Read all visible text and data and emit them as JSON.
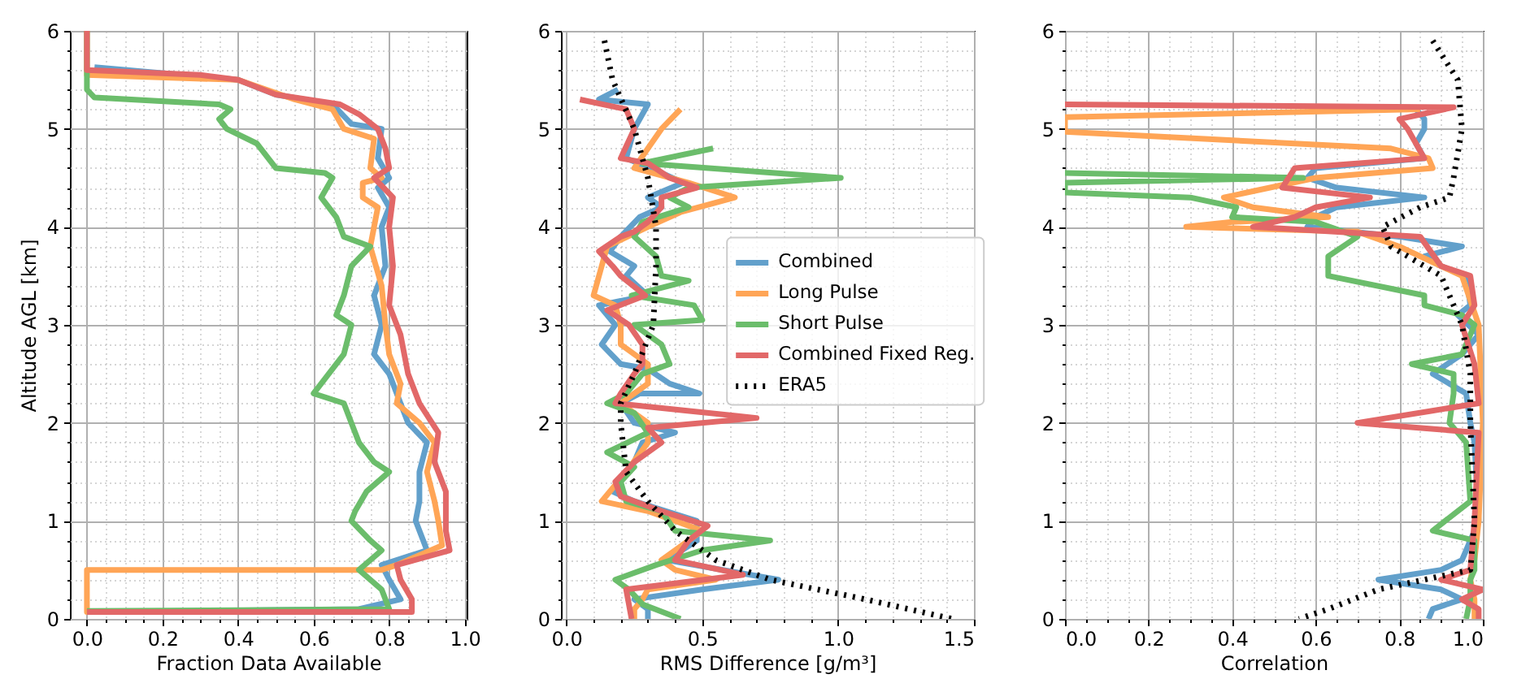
{
  "chart_data": [
    {
      "type": "line",
      "xlabel": "Fraction Data Available",
      "ylabel": "Altitude AGL [km]",
      "xlim": [
        -0.045,
        1.005
      ],
      "ylim": [
        0,
        6
      ],
      "xticks": [
        {
          "value": 0,
          "label": "0.0"
        },
        {
          "value": 0.05,
          "label": null
        },
        {
          "value": 0.1,
          "label": null
        },
        {
          "value": 0.15,
          "label": null
        },
        0.2,
        {
          "value": 0.25,
          "label": null
        },
        {
          "value": 0.3,
          "label": null
        },
        {
          "value": 0.35,
          "label": null
        },
        0.4,
        {
          "value": 0.45,
          "label": null
        },
        {
          "value": 0.5,
          "label": null
        },
        {
          "value": 0.55,
          "label": null
        },
        0.6,
        {
          "value": 0.65,
          "label": null
        },
        {
          "value": 0.7,
          "label": null
        },
        {
          "value": 0.75,
          "label": null
        },
        0.8,
        {
          "value": 0.85,
          "label": null
        },
        {
          "value": 0.9,
          "label": null
        },
        {
          "value": 0.95,
          "label": null
        },
        {
          "value": 1,
          "label": "1.0"
        }
      ],
      "yticks": [
        0,
        {
          "value": 0.2,
          "label": null
        },
        {
          "value": 0.4,
          "label": null
        },
        {
          "value": 0.6,
          "label": null
        },
        {
          "value": 0.8,
          "label": null
        },
        1,
        {
          "value": 1.2,
          "label": null
        },
        {
          "value": 1.4,
          "label": null
        },
        {
          "value": 1.6,
          "label": null
        },
        {
          "value": 1.8,
          "label": null
        },
        2,
        {
          "value": 2.2,
          "label": null
        },
        {
          "value": 2.4,
          "label": null
        },
        {
          "value": 2.6,
          "label": null
        },
        {
          "value": 2.8,
          "label": null
        },
        3,
        {
          "value": 3.2,
          "label": null
        },
        {
          "value": 3.4,
          "label": null
        },
        {
          "value": 3.6,
          "label": null
        },
        {
          "value": 3.8,
          "label": null
        },
        4,
        {
          "value": 4.2,
          "label": null
        },
        {
          "value": 4.4,
          "label": null
        },
        {
          "value": 4.6,
          "label": null
        },
        {
          "value": 4.8,
          "label": null
        },
        5,
        {
          "value": 5.2,
          "label": null
        },
        {
          "value": 5.4,
          "label": null
        },
        {
          "value": 5.6,
          "label": null
        },
        {
          "value": 5.8,
          "label": null
        },
        6
      ],
      "grid": true,
      "series": [
        {
          "color": "#62a0cb",
          "line_style": "solid",
          "x": [
            0.02,
            0.4,
            0.5,
            0.65,
            0.7,
            0.78,
            0.77,
            0.8,
            0.77,
            0.8,
            0.78,
            0.79,
            0.76,
            0.78,
            0.76,
            0.8,
            0.82,
            0.85,
            0.9,
            0.88,
            0.88,
            0.87,
            0.9,
            0.78,
            0.8,
            0.83,
            0.72,
            0
          ],
          "values": [
            5.63,
            5.5,
            5.35,
            5.25,
            5.05,
            5,
            4.7,
            4.5,
            4.4,
            4.2,
            4,
            3.6,
            3.3,
            3,
            2.7,
            2.5,
            2.3,
            2,
            1.8,
            1.5,
            1.2,
            1,
            0.7,
            0.55,
            0.4,
            0.2,
            0.1,
            0.07
          ]
        },
        {
          "color": "#ffa556",
          "line_style": "solid",
          "x": [
            0,
            0,
            0.4,
            0.55,
            0.65,
            0.68,
            0.76,
            0.75,
            0.78,
            0.73,
            0.73,
            0.77,
            0.75,
            0.78,
            0.79,
            0.8,
            0.83,
            0.82,
            0.88,
            0.92,
            0.9,
            0.92,
            0.93,
            0.94,
            0.82,
            0.78,
            0,
            0,
            0.75
          ],
          "values": [
            6,
            5.55,
            5.5,
            5.3,
            5.2,
            5,
            4.9,
            4.6,
            4.5,
            4.45,
            4.3,
            4.2,
            3.8,
            3.4,
            3,
            2.7,
            2.4,
            2.2,
            2,
            1.8,
            1.5,
            1.2,
            1,
            0.75,
            0.55,
            0.5,
            0.5,
            0.07,
            0.07
          ]
        },
        {
          "color": "#6bbd6b",
          "line_style": "solid",
          "x": [
            0,
            0,
            0.02,
            0.35,
            0.38,
            0.35,
            0.37,
            0.45,
            0.48,
            0.5,
            0.63,
            0.65,
            0.62,
            0.66,
            0.68,
            0.75,
            0.7,
            0.68,
            0.66,
            0.7,
            0.68,
            0.62,
            0.6,
            0.68,
            0.7,
            0.72,
            0.76,
            0.8,
            0.74,
            0.71,
            0.7,
            0.75,
            0.78,
            0.72,
            0.78,
            0.8,
            0
          ],
          "values": [
            6,
            5.4,
            5.32,
            5.25,
            5.2,
            5.1,
            5,
            4.85,
            4.7,
            4.6,
            4.55,
            4.5,
            4.3,
            4.1,
            3.9,
            3.8,
            3.6,
            3.3,
            3.1,
            3,
            2.7,
            2.4,
            2.3,
            2.2,
            2,
            1.8,
            1.6,
            1.5,
            1.3,
            1.1,
            1,
            0.8,
            0.7,
            0.5,
            0.3,
            0.1,
            0.08
          ]
        },
        {
          "color": "#e26868",
          "line_style": "solid",
          "x": [
            0,
            0,
            0.3,
            0.4,
            0.5,
            0.67,
            0.72,
            0.77,
            0.79,
            0.8,
            0.76,
            0.81,
            0.8,
            0.81,
            0.8,
            0.83,
            0.85,
            0.88,
            0.93,
            0.92,
            0.95,
            0.95,
            0.96,
            0.82,
            0.83,
            0.86,
            0.86,
            0
          ],
          "values": [
            6,
            5.6,
            5.55,
            5.5,
            5.35,
            5.25,
            5.15,
            5,
            4.8,
            4.6,
            4.5,
            4.3,
            4,
            3.6,
            3.2,
            2.9,
            2.5,
            2.2,
            1.9,
            1.6,
            1.3,
            0.9,
            0.7,
            0.55,
            0.4,
            0.2,
            0.07,
            0.07
          ]
        }
      ]
    },
    {
      "type": "line",
      "xlabel": "RMS Difference [g/m³]",
      "xlim": [
        -0.02,
        1.5
      ],
      "ylim": [
        0,
        6
      ],
      "xticks": [
        {
          "value": 0,
          "label": "0.0"
        },
        {
          "value": 0.1,
          "label": null
        },
        {
          "value": 0.2,
          "label": null
        },
        {
          "value": 0.3,
          "label": null
        },
        {
          "value": 0.4,
          "label": null
        },
        0.5,
        {
          "value": 0.6,
          "label": null
        },
        {
          "value": 0.7,
          "label": null
        },
        {
          "value": 0.8,
          "label": null
        },
        {
          "value": 0.9,
          "label": null
        },
        {
          "value": 1,
          "label": "1.0"
        },
        {
          "value": 1.1,
          "label": null
        },
        {
          "value": 1.2,
          "label": null
        },
        {
          "value": 1.3,
          "label": null
        },
        {
          "value": 1.4,
          "label": null
        },
        1.5
      ],
      "yticks": [
        0,
        {
          "value": 0.2,
          "label": null
        },
        {
          "value": 0.4,
          "label": null
        },
        {
          "value": 0.6,
          "label": null
        },
        {
          "value": 0.8,
          "label": null
        },
        1,
        {
          "value": 1.2,
          "label": null
        },
        {
          "value": 1.4,
          "label": null
        },
        {
          "value": 1.6,
          "label": null
        },
        {
          "value": 1.8,
          "label": null
        },
        2,
        {
          "value": 2.2,
          "label": null
        },
        {
          "value": 2.4,
          "label": null
        },
        {
          "value": 2.6,
          "label": null
        },
        {
          "value": 2.8,
          "label": null
        },
        3,
        {
          "value": 3.2,
          "label": null
        },
        {
          "value": 3.4,
          "label": null
        },
        {
          "value": 3.6,
          "label": null
        },
        {
          "value": 3.8,
          "label": null
        },
        4,
        {
          "value": 4.2,
          "label": null
        },
        {
          "value": 4.4,
          "label": null
        },
        {
          "value": 4.6,
          "label": null
        },
        {
          "value": 4.8,
          "label": null
        },
        5,
        {
          "value": 5.2,
          "label": null
        },
        {
          "value": 5.4,
          "label": null
        },
        {
          "value": 5.6,
          "label": null
        },
        {
          "value": 5.8,
          "label": null
        },
        6
      ],
      "grid": true,
      "legend": "right",
      "series": [
        {
          "name": "Combined",
          "color": "#62a0cb",
          "line_style": "solid",
          "x": [
            0.19,
            0.12,
            0.3,
            0.25,
            0.22,
            0.35,
            0.43,
            0.3,
            0.35,
            0.27,
            0.2,
            0.16,
            0.25,
            0.22,
            0.3,
            0.12,
            0.18,
            0.13,
            0.2,
            0.3,
            0.38,
            0.49,
            0.27,
            0.2,
            0.25,
            0.4,
            0.28,
            0.25,
            0.17,
            0.25,
            0.48,
            0.48,
            0.37,
            0.78,
            0.5,
            0.25,
            0.3,
            0.3
          ],
          "values": [
            5.4,
            5.3,
            5.25,
            5,
            4.7,
            4.55,
            4.45,
            4.3,
            4.2,
            4.1,
            3.9,
            3.75,
            3.6,
            3.5,
            3.3,
            3.2,
            3,
            2.8,
            2.6,
            2.55,
            2.4,
            2.3,
            2.3,
            2.2,
            2,
            1.9,
            1.8,
            1.6,
            1.3,
            1.2,
            1,
            0.8,
            0.6,
            0.4,
            0.3,
            0.2,
            0.1,
            0
          ]
        },
        {
          "name": "Long Pulse",
          "color": "#ffa556",
          "line_style": "solid",
          "x": [
            0.42,
            0.35,
            0.3,
            0.25,
            0.45,
            0.62,
            0.42,
            0.3,
            0.15,
            0.12,
            0.1,
            0.18,
            0.2,
            0.2,
            0.3,
            0.3,
            0.2,
            0.3,
            0.3,
            0.22,
            0.13,
            0.3,
            0.5,
            0.4,
            0.35,
            0.4,
            0.55,
            0.3,
            0.28,
            0.25,
            0.25
          ],
          "values": [
            5.2,
            5,
            4.8,
            4.6,
            4.45,
            4.3,
            4.15,
            4,
            3.8,
            3.5,
            3.3,
            3.2,
            3,
            2.8,
            2.6,
            2.4,
            2.2,
            2,
            1.8,
            1.5,
            1.2,
            1.1,
            0.9,
            0.7,
            0.6,
            0.5,
            0.4,
            0.3,
            0.2,
            0.1,
            0
          ]
        },
        {
          "name": "Short Pulse",
          "color": "#6bbd6b",
          "line_style": "solid",
          "x": [
            0.54,
            0.28,
            1.01,
            0.45,
            0.38,
            0.45,
            0.28,
            0.25,
            0.33,
            0.35,
            0.45,
            0.24,
            0.47,
            0.5,
            0.25,
            0.35,
            0.38,
            0.28,
            0.22,
            0.15,
            0.25,
            0.3,
            0.15,
            0.25,
            0.2,
            0.22,
            0.35,
            0.4,
            0.75,
            0.5,
            0.33,
            0.18,
            0.23,
            0.28,
            0.42
          ],
          "values": [
            4.8,
            4.65,
            4.5,
            4.4,
            4.3,
            4.2,
            4.05,
            3.9,
            3.7,
            3.5,
            3.45,
            3.3,
            3.2,
            3.05,
            3,
            2.8,
            2.6,
            2.5,
            2.3,
            2.2,
            2.1,
            1.9,
            1.7,
            1.55,
            1.4,
            1.2,
            1.1,
            0.9,
            0.8,
            0.7,
            0.55,
            0.4,
            0.3,
            0.15,
            0
          ]
        },
        {
          "name": "Combined Fixed Reg.",
          "color": "#e26868",
          "line_style": "solid",
          "x": [
            0.05,
            0.22,
            0.25,
            0.2,
            0.3,
            0.38,
            0.48,
            0.35,
            0.35,
            0.3,
            0.25,
            0.2,
            0.12,
            0.17,
            0.2,
            0.29,
            0.15,
            0.23,
            0.28,
            0.28,
            0.25,
            0.2,
            0.18,
            0.7,
            0.3,
            0.35,
            0.25,
            0.18,
            0.2,
            0.35,
            0.52,
            0.45,
            0.4,
            0.65,
            0.22,
            0.23,
            0.24
          ],
          "values": [
            5.3,
            5.2,
            5,
            4.7,
            4.65,
            4.5,
            4.4,
            4.3,
            4.2,
            4.05,
            3.95,
            3.9,
            3.75,
            3.6,
            3.5,
            3.3,
            3.15,
            3,
            2.8,
            2.6,
            2.5,
            2.3,
            2.2,
            2.05,
            1.95,
            1.8,
            1.6,
            1.4,
            1.25,
            1.1,
            0.95,
            0.8,
            0.6,
            0.45,
            0.3,
            0.15,
            0
          ]
        },
        {
          "name": "ERA5",
          "color": "#000000",
          "line_style": "dotted",
          "x": [
            0.14,
            0.17,
            0.25,
            0.3,
            0.33,
            0.33,
            0.32,
            0.25,
            0.2,
            0.2,
            0.22,
            0.3,
            0.4,
            0.55,
            0.75,
            1.1,
            1.42
          ],
          "values": [
            5.9,
            5.5,
            5,
            4.5,
            4,
            3.6,
            3,
            2.5,
            2.2,
            2,
            1.5,
            1.2,
            0.9,
            0.6,
            0.4,
            0.2,
            0
          ]
        }
      ]
    },
    {
      "type": "line",
      "xlabel": "Correlation",
      "xlim": [
        0,
        1
      ],
      "ylim": [
        0,
        6
      ],
      "xticks": [
        {
          "value": 0,
          "label": "0.0"
        },
        {
          "value": 0.05,
          "label": null
        },
        {
          "value": 0.1,
          "label": null
        },
        {
          "value": 0.15,
          "label": null
        },
        0.2,
        {
          "value": 0.25,
          "label": null
        },
        {
          "value": 0.3,
          "label": null
        },
        {
          "value": 0.35,
          "label": null
        },
        0.4,
        {
          "value": 0.45,
          "label": null
        },
        {
          "value": 0.5,
          "label": null
        },
        {
          "value": 0.55,
          "label": null
        },
        0.6,
        {
          "value": 0.65,
          "label": null
        },
        {
          "value": 0.7,
          "label": null
        },
        {
          "value": 0.75,
          "label": null
        },
        0.8,
        {
          "value": 0.85,
          "label": null
        },
        {
          "value": 0.9,
          "label": null
        },
        {
          "value": 0.95,
          "label": null
        },
        {
          "value": 1,
          "label": "1.0"
        }
      ],
      "yticks": [
        0,
        {
          "value": 0.2,
          "label": null
        },
        {
          "value": 0.4,
          "label": null
        },
        {
          "value": 0.6,
          "label": null
        },
        {
          "value": 0.8,
          "label": null
        },
        1,
        {
          "value": 1.2,
          "label": null
        },
        {
          "value": 1.4,
          "label": null
        },
        {
          "value": 1.6,
          "label": null
        },
        {
          "value": 1.8,
          "label": null
        },
        2,
        {
          "value": 2.2,
          "label": null
        },
        {
          "value": 2.4,
          "label": null
        },
        {
          "value": 2.6,
          "label": null
        },
        {
          "value": 2.8,
          "label": null
        },
        3,
        {
          "value": 3.2,
          "label": null
        },
        {
          "value": 3.4,
          "label": null
        },
        {
          "value": 3.6,
          "label": null
        },
        {
          "value": 3.8,
          "label": null
        },
        4,
        {
          "value": 4.2,
          "label": null
        },
        {
          "value": 4.4,
          "label": null
        },
        {
          "value": 4.6,
          "label": null
        },
        {
          "value": 4.8,
          "label": null
        },
        5,
        {
          "value": 5.2,
          "label": null
        },
        {
          "value": 5.4,
          "label": null
        },
        {
          "value": 5.6,
          "label": null
        },
        {
          "value": 5.8,
          "label": null
        },
        6
      ],
      "grid": true,
      "series": [
        {
          "color": "#62a0cb",
          "line_style": "solid",
          "x": [
            0.84,
            0.86,
            0.86,
            0.84,
            0.86,
            0.6,
            0.58,
            0.65,
            0.86,
            0.65,
            0.6,
            0.58,
            0.8,
            0.95,
            0.86,
            0.9,
            0.96,
            0.97,
            0.94,
            0.99,
            0.95,
            0.88,
            0.92,
            0.96,
            0.97,
            0.98,
            0.99,
            0.95,
            0.9,
            0.75,
            0.9,
            0.95,
            0.88,
            0.87
          ],
          "values": [
            5.2,
            5.1,
            5,
            4.85,
            4.7,
            4.6,
            4.5,
            4.4,
            4.3,
            4.2,
            4.1,
            4,
            3.9,
            3.8,
            3.7,
            3.6,
            3.5,
            3.2,
            3.1,
            2.9,
            2.7,
            2.5,
            2.4,
            2.3,
            2,
            1.8,
            1,
            0.6,
            0.5,
            0.4,
            0.3,
            0.2,
            0.1,
            0
          ]
        },
        {
          "color": "#ffa556",
          "line_style": "solid",
          "x": [
            0.85,
            0,
            0,
            0.78,
            0.87,
            0.88,
            0.6,
            0.38,
            0.45,
            0.63,
            0.4,
            0.29,
            0.7,
            0.8,
            0.95,
            0.99,
            1,
            0.99,
            0.98,
            0.97,
            0.98,
            0.98
          ],
          "values": [
            5.2,
            5.12,
            4.97,
            4.8,
            4.7,
            4.6,
            4.5,
            4.3,
            4.2,
            4.1,
            4.05,
            4,
            3.95,
            3.8,
            3.5,
            3,
            2,
            1,
            0.6,
            0.4,
            0.2,
            0
          ]
        },
        {
          "color": "#6bbd6b",
          "line_style": "solid",
          "x": [
            0,
            0.57,
            0,
            0,
            0.3,
            0.41,
            0.4,
            0.6,
            0.7,
            0.63,
            0.63,
            0.86,
            0.86,
            0.95,
            0.98,
            0.95,
            0.83,
            0.93,
            0.93,
            0.92,
            0.96,
            0.97,
            0.88,
            0.98,
            0.98,
            0.97,
            0.97,
            0.96
          ],
          "values": [
            4.55,
            4.5,
            4.45,
            4.35,
            4.3,
            4.2,
            4.1,
            4.05,
            3.9,
            3.7,
            3.5,
            3.3,
            3.2,
            3.1,
            3,
            2.7,
            2.6,
            2.5,
            2.3,
            2,
            1.8,
            1.2,
            0.9,
            0.8,
            0.5,
            0.4,
            0.2,
            0
          ]
        },
        {
          "color": "#e26868",
          "line_style": "solid",
          "x": [
            0,
            0.93,
            0.8,
            0.82,
            0.86,
            0.55,
            0.52,
            0.73,
            0.6,
            0.55,
            0.45,
            0.85,
            0.9,
            0.97,
            0.98,
            0.95,
            0.98,
            0.99,
            0.7,
            0.99,
            0.98,
            0.97,
            0.9,
            1,
            0.95,
            0.99,
            0.99
          ],
          "values": [
            5.25,
            5.22,
            5.1,
            5,
            4.7,
            4.6,
            4.4,
            4.3,
            4.2,
            4.1,
            4,
            3.9,
            3.6,
            3.5,
            3.2,
            3,
            2.6,
            2.2,
            2,
            1.9,
            1,
            0.5,
            0.4,
            0.3,
            0.2,
            0.1,
            0
          ]
        },
        {
          "color": "#000000",
          "line_style": "dotted",
          "x": [
            0.88,
            0.94,
            0.95,
            0.93,
            0.92,
            0.85,
            0.76,
            0.78,
            0.9,
            0.95,
            0.97,
            0.97,
            0.98,
            0.97,
            0.75,
            0.63,
            0.56
          ],
          "values": [
            5.9,
            5.5,
            5,
            4.5,
            4.3,
            4.2,
            4,
            3.8,
            3.5,
            3,
            2.5,
            2,
            1,
            0.5,
            0.3,
            0.1,
            0
          ]
        }
      ]
    }
  ]
}
